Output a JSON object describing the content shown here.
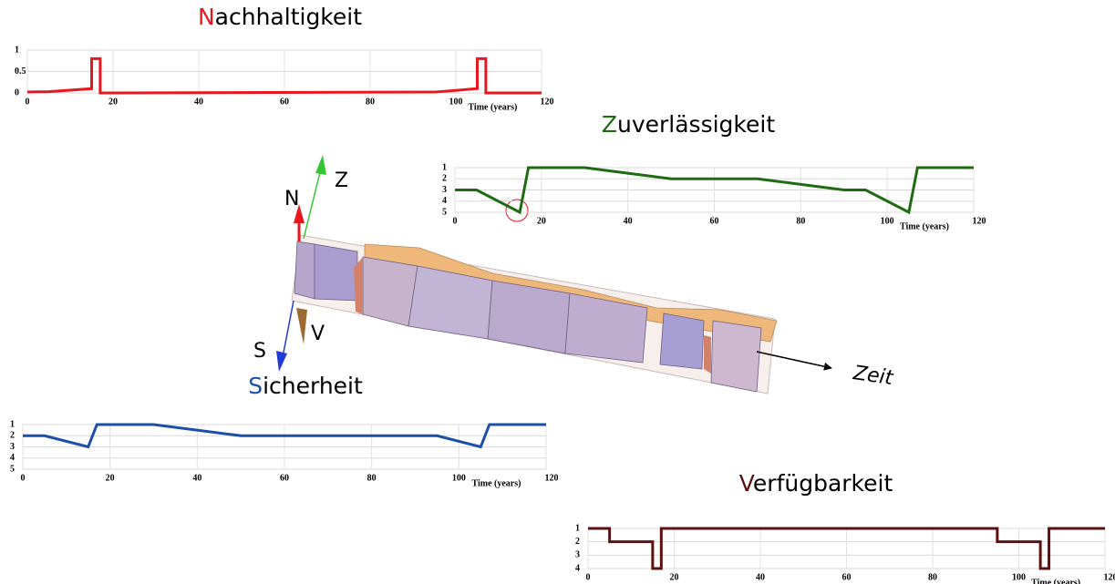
{
  "chart_data": [
    {
      "type": "line",
      "title": "Nachhaltigkeit",
      "x_label": "Time (years)",
      "color": "#e8171d",
      "x": [
        0,
        5,
        15,
        15,
        17,
        17,
        95,
        105,
        105,
        107,
        107,
        120
      ],
      "values": [
        0.02,
        0.03,
        0.1,
        0.8,
        0.8,
        0,
        0.02,
        0.1,
        0.8,
        0.8,
        0,
        0
      ],
      "xlim": [
        0,
        120
      ],
      "xticks": [
        0,
        20,
        40,
        60,
        80,
        100,
        120
      ],
      "ylim": [
        0,
        1
      ],
      "yticks": [
        0,
        0.5,
        1
      ],
      "grid": true
    },
    {
      "type": "line",
      "title": "Zuverlässigkeit",
      "x_label": "Time (years)",
      "color": "#1f6b12",
      "x": [
        0,
        5,
        15,
        17,
        30,
        50,
        70,
        90,
        95,
        105,
        107,
        120
      ],
      "values": [
        3,
        3,
        5,
        1,
        1,
        2,
        2,
        3,
        3,
        5,
        1,
        1
      ],
      "xlim": [
        0,
        120
      ],
      "xticks": [
        0,
        20,
        40,
        60,
        80,
        100,
        120
      ],
      "ylim": [
        5,
        1
      ],
      "yticks": [
        1,
        2,
        3,
        4,
        5
      ],
      "grid": true
    },
    {
      "type": "line",
      "title": "Sicherheit",
      "x_label": "Time (years)",
      "color": "#1b4fa8",
      "x": [
        0,
        5,
        15,
        17,
        30,
        50,
        95,
        105,
        107,
        120
      ],
      "values": [
        2,
        2,
        3,
        1,
        1,
        2,
        2,
        3,
        1,
        1
      ],
      "xlim": [
        0,
        120
      ],
      "xticks": [
        0,
        20,
        40,
        60,
        80,
        100,
        120
      ],
      "ylim": [
        5,
        1
      ],
      "yticks": [
        1,
        2,
        3,
        4,
        5
      ],
      "grid": true
    },
    {
      "type": "line",
      "title": "Verfügbarkeit",
      "x_label": "Time (years)",
      "color": "#5c1010",
      "x": [
        0,
        5,
        5,
        15,
        15,
        17,
        17,
        95,
        95,
        105,
        105,
        107,
        107,
        120
      ],
      "values": [
        1,
        1,
        2,
        2,
        4,
        4,
        1,
        1,
        2,
        2,
        4,
        4,
        1,
        1
      ],
      "xlim": [
        0,
        120
      ],
      "xticks": [
        0,
        20,
        40,
        60,
        80,
        100,
        120
      ],
      "ylim": [
        4,
        1
      ],
      "yticks": [
        1,
        2,
        3,
        4
      ],
      "grid": true
    }
  ],
  "diagram": {
    "axes": [
      "N",
      "Z",
      "S",
      "V"
    ],
    "time_label": "Zeit"
  }
}
